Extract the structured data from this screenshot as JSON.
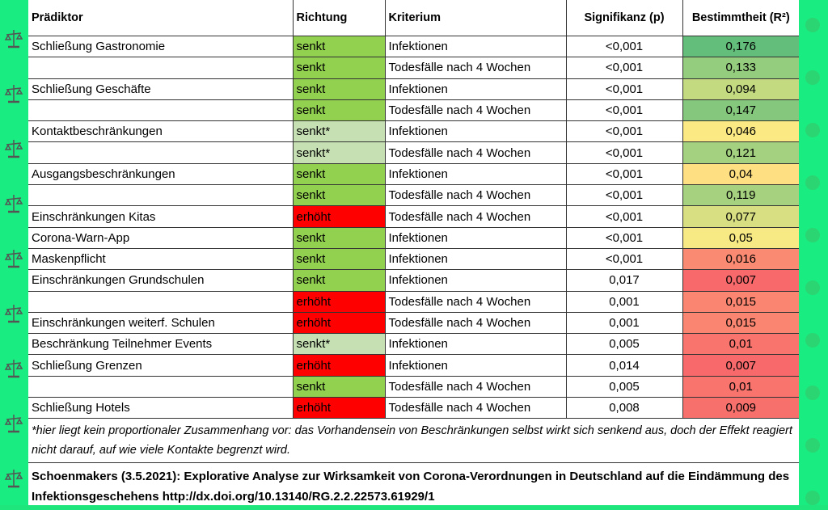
{
  "headers": [
    "Prädiktor",
    "Richtung",
    "Kriterium",
    "Signifikanz (p)",
    "Bestimmtheit (R²)"
  ],
  "rows": [
    [
      "Schließung Gastronomie",
      "senkt",
      "Infektionen",
      "<0,001",
      "0,176"
    ],
    [
      "",
      "senkt",
      "Todesfälle nach 4 Wochen",
      "<0,001",
      "0,133"
    ],
    [
      "Schließung Geschäfte",
      "senkt",
      "Infektionen",
      "<0,001",
      "0,094"
    ],
    [
      "",
      "senkt",
      "Todesfälle nach 4 Wochen",
      "<0,001",
      "0,147"
    ],
    [
      "Kontaktbeschränkungen",
      "senkt*",
      "Infektionen",
      "<0,001",
      "0,046"
    ],
    [
      "",
      "senkt*",
      "Todesfälle nach 4 Wochen",
      "<0,001",
      "0,121"
    ],
    [
      "Ausgangsbeschränkungen",
      "senkt",
      "Infektionen",
      "<0,001",
      "0,04"
    ],
    [
      "",
      "senkt",
      "Todesfälle nach 4 Wochen",
      "<0,001",
      "0,119"
    ],
    [
      "Einschränkungen Kitas",
      "erhöht",
      "Todesfälle nach 4 Wochen",
      "<0,001",
      "0,077"
    ],
    [
      "Corona-Warn-App",
      "senkt",
      "Infektionen",
      "<0,001",
      "0,05"
    ],
    [
      "Maskenpflicht",
      "senkt",
      "Infektionen",
      "<0,001",
      "0,016"
    ],
    [
      "Einschränkungen Grundschulen",
      "senkt",
      "Infektionen",
      "0,017",
      "0,007"
    ],
    [
      "",
      "erhöht",
      "Todesfälle nach 4 Wochen",
      "0,001",
      "0,015"
    ],
    [
      "Einschränkungen weiterf. Schulen",
      "erhöht",
      "Todesfälle nach 4 Wochen",
      "0,001",
      "0,015"
    ],
    [
      "Beschränkung Teilnehmer Events",
      "senkt*",
      "Infektionen",
      "0,005",
      "0,01"
    ],
    [
      "Schließung Grenzen",
      "erhöht",
      "Infektionen",
      "0,014",
      "0,007"
    ],
    [
      "",
      "senkt",
      "Todesfälle nach 4 Wochen",
      "0,005",
      "0,01"
    ],
    [
      "Schließung Hotels",
      "erhöht",
      "Todesfälle nach 4 Wochen",
      "0,008",
      "0,009"
    ]
  ],
  "footnote": "*hier liegt kein proportionaler Zusammenhang vor: das Vorhandensein von Beschränkungen selbst wirkt sich senkend aus, doch der Effekt reagiert nicht darauf, auf wie viele Kontakte begrenzt wird.",
  "citation": "Schoenmakers (3.5.2021): Explorative Analyse zur Wirksamkeit von Corona-Verordnungen in Deutschland auf die Eindämmung des Infektionsgeschehens http://dx.doi.org/10.13140/RG.2.2.22573.61929/1",
  "colors": {
    "senkt": "#92d050",
    "senkt*": "#c6e0b4",
    "erhöht": "#ff0000",
    "scale_low": "#f8696b",
    "scale_mid": "#ffeb84",
    "scale_high": "#63be7b",
    "border": "#19ec80"
  }
}
